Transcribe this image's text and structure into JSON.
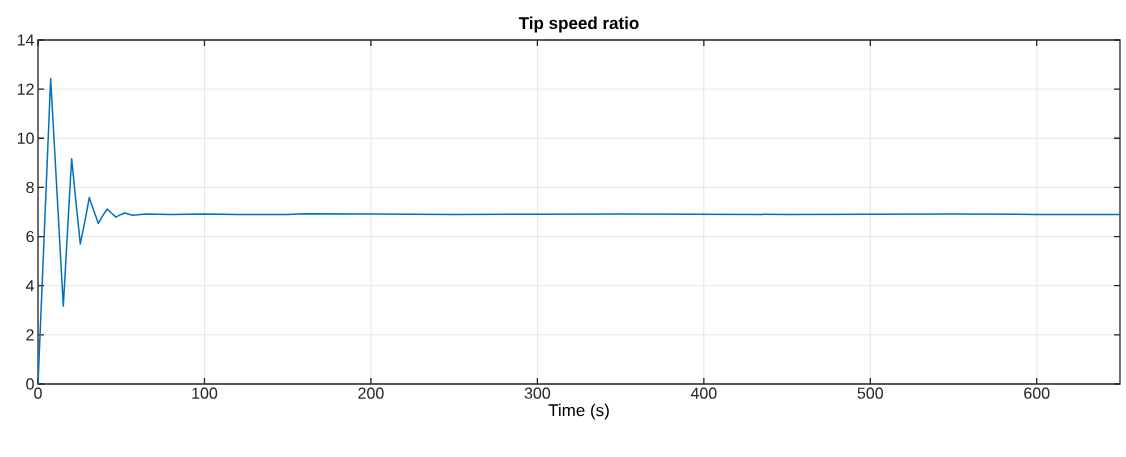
{
  "chart_data": {
    "type": "line",
    "title": "Tip speed ratio",
    "xlabel": "Time (s)",
    "x": [
      0,
      3.8,
      7.6,
      11.4,
      15.2,
      17.7,
      20.2,
      22.8,
      25.4,
      28.1,
      30.8,
      33.5,
      36.2,
      38.9,
      41.6,
      44.2,
      46.8,
      49.4,
      52,
      56.8,
      65,
      80,
      100,
      120,
      150,
      160,
      200,
      250,
      300,
      350,
      400,
      450,
      500,
      550,
      600,
      650
    ],
    "series": [
      {
        "color": "#0072bd",
        "values": [
          0,
          6.2,
          12.43,
          7.8,
          3.17,
          6.2,
          9.17,
          7.4,
          5.7,
          6.6,
          7.59,
          7.05,
          6.54,
          6.85,
          7.12,
          6.95,
          6.79,
          6.88,
          6.96,
          6.87,
          6.92,
          6.9,
          6.92,
          6.9,
          6.9,
          6.93,
          6.92,
          6.9,
          6.91,
          6.92,
          6.91,
          6.9,
          6.91,
          6.92,
          6.9,
          6.9
        ]
      }
    ],
    "xlim": [
      0,
      650
    ],
    "ylim": [
      0,
      14
    ],
    "xticks": [
      0,
      100,
      200,
      300,
      400,
      500,
      600
    ],
    "yticks": [
      0,
      2,
      4,
      6,
      8,
      10,
      12,
      14
    ],
    "grid": true,
    "marker": "none",
    "line_style": "solid"
  }
}
